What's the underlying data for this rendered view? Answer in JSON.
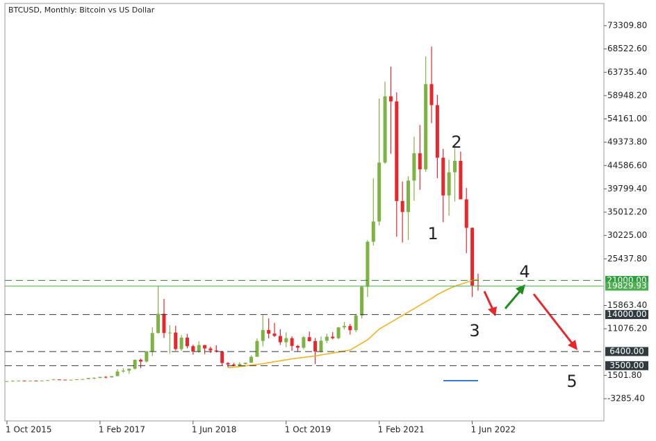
{
  "chart_data": {
    "type": "candlestick",
    "title": "BTCUSD, Monthly:  Bitcoin vs US Dollar",
    "x": [
      "2015-10-01",
      "2015-11-01",
      "2015-12-01",
      "2016-01-01",
      "2016-02-01",
      "2016-03-01",
      "2016-04-01",
      "2016-05-01",
      "2016-06-01",
      "2016-07-01",
      "2016-08-01",
      "2016-09-01",
      "2016-10-01",
      "2016-11-01",
      "2016-12-01",
      "2017-01-01",
      "2017-02-01",
      "2017-03-01",
      "2017-04-01",
      "2017-05-01",
      "2017-06-01",
      "2017-07-01",
      "2017-08-01",
      "2017-09-01",
      "2017-10-01",
      "2017-11-01",
      "2017-12-01",
      "2018-01-01",
      "2018-02-01",
      "2018-03-01",
      "2018-04-01",
      "2018-05-01",
      "2018-06-01",
      "2018-07-01",
      "2018-08-01",
      "2018-09-01",
      "2018-10-01",
      "2018-11-01",
      "2018-12-01",
      "2019-01-01",
      "2019-02-01",
      "2019-03-01",
      "2019-04-01",
      "2019-05-01",
      "2019-06-01",
      "2019-07-01",
      "2019-08-01",
      "2019-09-01",
      "2019-10-01",
      "2019-11-01",
      "2019-12-01",
      "2020-01-01",
      "2020-02-01",
      "2020-03-01",
      "2020-04-01",
      "2020-05-01",
      "2020-06-01",
      "2020-07-01",
      "2020-08-01",
      "2020-09-01",
      "2020-10-01",
      "2020-11-01",
      "2020-12-01",
      "2021-01-01",
      "2021-02-01",
      "2021-03-01",
      "2021-04-01",
      "2021-05-01",
      "2021-06-01",
      "2021-07-01",
      "2021-08-01",
      "2021-09-01",
      "2021-10-01",
      "2021-11-01",
      "2021-12-01",
      "2022-01-01",
      "2022-02-01",
      "2022-03-01",
      "2022-04-01",
      "2022-05-01",
      "2022-06-01",
      "2022-07-01"
    ],
    "open": [
      236,
      311,
      377,
      430,
      369,
      437,
      416,
      448,
      531,
      674,
      624,
      575,
      608,
      700,
      745,
      964,
      970,
      1190,
      1080,
      1350,
      2300,
      2480,
      2875,
      4700,
      4340,
      6460,
      10200,
      14150,
      10200,
      10300,
      6900,
      9250,
      7500,
      6400,
      7730,
      7030,
      6630,
      6370,
      4040,
      3740,
      3460,
      3850,
      4100,
      5320,
      8570,
      10820,
      10080,
      9600,
      8300,
      9150,
      7550,
      7190,
      9350,
      8540,
      6420,
      8630,
      9450,
      9140,
      11350,
      11650,
      10780,
      13800,
      19700,
      28950,
      33100,
      45200,
      58800,
      57750,
      37300,
      35050,
      41500,
      47100,
      43800,
      61300,
      57000,
      46200,
      38450,
      43200,
      45550,
      37650,
      31800,
      19950
    ],
    "high": [
      330,
      495,
      465,
      460,
      445,
      440,
      467,
      550,
      780,
      705,
      625,
      630,
      740,
      760,
      980,
      1150,
      1210,
      1350,
      1350,
      2760,
      2980,
      2920,
      4760,
      4980,
      6470,
      11400,
      19800,
      17200,
      11800,
      11700,
      9800,
      9990,
      7800,
      8480,
      7760,
      7400,
      7680,
      6560,
      4240,
      4080,
      4200,
      4140,
      5620,
      9100,
      13900,
      13200,
      12300,
      10950,
      10350,
      9500,
      7750,
      9580,
      10500,
      9190,
      9460,
      10070,
      10400,
      11450,
      12480,
      12080,
      14100,
      19900,
      29300,
      41950,
      58350,
      61800,
      64900,
      59600,
      41300,
      42400,
      50500,
      52900,
      67000,
      69000,
      59100,
      48000,
      45800,
      48200,
      47450,
      40000,
      31900,
      22400
    ],
    "low": [
      236,
      305,
      350,
      355,
      365,
      395,
      412,
      435,
      520,
      610,
      470,
      570,
      600,
      685,
      745,
      760,
      935,
      890,
      1060,
      1350,
      2080,
      1830,
      2680,
      2980,
      4160,
      5500,
      10100,
      9200,
      6000,
      6600,
      6550,
      7050,
      5780,
      6100,
      5880,
      6100,
      6200,
      3560,
      3130,
      3400,
      3380,
      3730,
      4060,
      5320,
      7450,
      9100,
      9400,
      7750,
      7300,
      6550,
      6430,
      6880,
      8450,
      3850,
      6150,
      8120,
      8900,
      8920,
      10950,
      9880,
      10380,
      13200,
      17600,
      28150,
      32300,
      44950,
      47000,
      30000,
      28800,
      29300,
      37350,
      39600,
      43300,
      53300,
      42000,
      32950,
      34300,
      37200,
      37650,
      26600,
      17600,
      18900
    ],
    "close": [
      311,
      377,
      430,
      369,
      437,
      416,
      448,
      531,
      674,
      624,
      575,
      608,
      700,
      745,
      964,
      970,
      1190,
      1080,
      1350,
      2300,
      2480,
      2875,
      4700,
      4340,
      6460,
      10200,
      14150,
      10200,
      10300,
      6900,
      9250,
      7500,
      6400,
      7730,
      7030,
      6630,
      6370,
      4040,
      3740,
      3460,
      3850,
      4100,
      5320,
      8570,
      10820,
      10080,
      9600,
      8300,
      9150,
      7550,
      7190,
      9350,
      8540,
      6420,
      8630,
      9450,
      9140,
      11350,
      11650,
      10780,
      13800,
      19700,
      28950,
      33100,
      45200,
      58800,
      57750,
      37300,
      35050,
      41500,
      47100,
      43800,
      61300,
      57000,
      46200,
      38450,
      43200,
      45550,
      37650,
      31800,
      19950,
      19829.93
    ],
    "up_color": "#7cb342",
    "down_color": "#e8262b",
    "ma": {
      "color": "#f0b323",
      "values": [
        null,
        null,
        null,
        null,
        null,
        null,
        null,
        null,
        null,
        null,
        null,
        null,
        null,
        null,
        null,
        null,
        null,
        null,
        null,
        null,
        null,
        null,
        null,
        null,
        null,
        null,
        null,
        null,
        null,
        null,
        null,
        null,
        null,
        null,
        null,
        null,
        null,
        null,
        3100,
        3200,
        3300,
        3450,
        3600,
        3750,
        3900,
        4100,
        4300,
        4500,
        4700,
        4900,
        5050,
        5200,
        5350,
        5500,
        5700,
        5900,
        6100,
        6300,
        6500,
        6700,
        7400,
        8100,
        8800,
        9900,
        11000,
        11700,
        12400,
        13100,
        13800,
        14500,
        15200,
        15900,
        16600,
        17300,
        18100,
        18700,
        19300,
        19800,
        20200,
        20600,
        21000,
        21200
      ]
    },
    "ylim": [
      -7841,
      77866
    ],
    "yticks": [
      {
        "value": 73309.8,
        "label": "73309.80"
      },
      {
        "value": 68522.6,
        "label": "68522.60"
      },
      {
        "value": 63735.4,
        "label": "63735.40"
      },
      {
        "value": 58948.2,
        "label": "58948.20"
      },
      {
        "value": 54161,
        "label": "54161.00"
      },
      {
        "value": 49373.8,
        "label": "49373.80"
      },
      {
        "value": 44586.6,
        "label": "44586.60"
      },
      {
        "value": 39799.4,
        "label": "39799.40"
      },
      {
        "value": 35012.2,
        "label": "35012.20"
      },
      {
        "value": 30225,
        "label": "30225.00"
      },
      {
        "value": 25437.8,
        "label": "25437.80"
      },
      {
        "value": 15863.4,
        "label": "15863.40"
      },
      {
        "value": 11076.2,
        "label": "11076.20"
      },
      {
        "value": 1501.8,
        "label": "1501.80"
      },
      {
        "value": -3285.4,
        "label": "-3285.40"
      }
    ],
    "xticks": [
      {
        "value": "2015-10-01",
        "label": "1 Oct 2015"
      },
      {
        "value": "2017-02-01",
        "label": "1 Feb 2017"
      },
      {
        "value": "2018-06-01",
        "label": "1 Jun 2018"
      },
      {
        "value": "2019-10-01",
        "label": "1 Oct 2019"
      },
      {
        "value": "2021-02-01",
        "label": "1 Feb 2021"
      },
      {
        "value": "2022-06-01",
        "label": "1 Jun 2022"
      }
    ],
    "levels": [
      {
        "value": 21000,
        "label": "21000.00",
        "color": "#2e7d32",
        "dashed": true,
        "tag_color": "#2e9e3e"
      },
      {
        "value": 19829.93,
        "color": "#4caf50",
        "dashed": false,
        "tag_color": "#4caf50"
      },
      {
        "value": 14000,
        "label": "14000.00",
        "color": "#333333",
        "dashed": true,
        "tag_color": "#2f3b3f"
      },
      {
        "value": 6400,
        "label": "6400.00",
        "color": "#333333",
        "dashed": true,
        "tag_color": "#2f3b3f"
      },
      {
        "value": 3500,
        "label": "3500.00",
        "color": "#333333",
        "dashed": true,
        "tag_color": "#2f3b3f"
      }
    ],
    "annotations": [
      "1",
      "2",
      "3",
      "4",
      "5"
    ]
  }
}
